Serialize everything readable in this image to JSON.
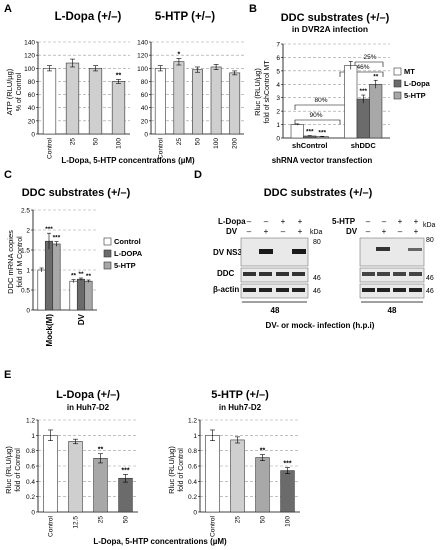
{
  "panel_letters": [
    "A",
    "B",
    "C",
    "D",
    "E"
  ],
  "panelA": {
    "left_title": "L-Dopa (+/–)",
    "right_title": "5-HTP (+/–)",
    "ylabel": "ATP (RLU/µg)",
    "ylabel2": "% of Control",
    "xlabel": "L-Dopa, 5-HTP concentrations (µM)"
  },
  "panelB": {
    "title": "DDC substrates (+/–)",
    "subtitle": "in DVR2A infection",
    "ylabel": "Rluc (RLU/µg)",
    "ylabel2": "fold of shControl MT",
    "xlabel": "shRNA vector transfection",
    "brackets": [
      "25%",
      "46%",
      "80%",
      "90%"
    ]
  },
  "panelC": {
    "title": "DDC substrates (+/–)",
    "ylabel": "DDC mRNA copies",
    "ylabel2": "fold of M Control"
  },
  "panelD": {
    "title": "DDC substrates (+/–)",
    "left_treat_label": "L-Dopa",
    "right_treat_label": "5-HTP",
    "dv_label": "DV",
    "left_treat_signs": [
      "–",
      "–",
      "+",
      "+"
    ],
    "left_dv_signs": [
      "–",
      "+",
      "–",
      "+"
    ],
    "right_treat_signs": [
      "–",
      "–",
      "+",
      "+"
    ],
    "right_dv_signs": [
      "–",
      "+",
      "–",
      "+"
    ],
    "row_labels": [
      "DV NS3",
      "DDC",
      "β-actin"
    ],
    "kda": "kDa",
    "mw_left": [
      "80",
      "46",
      "46"
    ],
    "mw_right": [
      "80",
      "46",
      "46"
    ],
    "time_left": "48",
    "time_right": "48",
    "footer": "DV- or mock- infection (h.p.i)"
  },
  "panelE": {
    "left_title": "L-Dopa (+/–)",
    "left_subtitle": "in Huh7-D2",
    "right_title": "5-HTP (+/–)",
    "right_subtitle": "in Huh7-D2",
    "ylabel": "Rluc (RLU/µg)",
    "ylabel2": "fold of Control",
    "xlabel": "L-Dopa, 5-HTP concentrations (µM)"
  },
  "colors": {
    "white": "#ffffff",
    "light": "#cfcfcf",
    "dark": "#6b6b6b",
    "grid": "#9a9a9a"
  },
  "chart_data": [
    {
      "type": "bar",
      "panel": "A-left",
      "title": "L-Dopa (+/–)",
      "ylabel": "ATP (RLU/µg) % of Control",
      "ylim": [
        0,
        140
      ],
      "yticks": [
        0,
        20,
        40,
        60,
        80,
        100,
        120,
        140
      ],
      "grid": true,
      "categories": [
        "Control",
        "25",
        "50",
        "100"
      ],
      "values": [
        100,
        108,
        100,
        80
      ],
      "errors": [
        4,
        6,
        4,
        3
      ],
      "annotations": [
        "",
        "",
        "",
        "**"
      ],
      "fills": [
        "white",
        "light",
        "light",
        "light"
      ]
    },
    {
      "type": "bar",
      "panel": "A-right",
      "title": "5-HTP (+/–)",
      "ylim": [
        0,
        140
      ],
      "yticks": [
        0,
        20,
        40,
        60,
        80,
        100,
        120,
        140
      ],
      "grid": true,
      "categories": [
        "Control",
        "25",
        "50",
        "100",
        "200"
      ],
      "values": [
        100,
        110,
        98,
        102,
        93
      ],
      "errors": [
        4,
        5,
        4,
        4,
        3
      ],
      "annotations": [
        "",
        "*",
        "",
        "",
        ""
      ],
      "fills": [
        "white",
        "light",
        "light",
        "light",
        "light"
      ]
    },
    {
      "type": "bar",
      "panel": "B",
      "title": "DDC substrates (+/–)",
      "ylabel": "Rluc (RLU/µg) fold of shControl MT",
      "ylim": [
        0,
        7
      ],
      "yticks": [
        0,
        1,
        2,
        3,
        4,
        5,
        6,
        7
      ],
      "grid": true,
      "categories": [
        "shControl",
        "shDDC"
      ],
      "legend": "right",
      "series": [
        {
          "name": "MT",
          "values": [
            1.0,
            5.4
          ],
          "errors": [
            0.05,
            0.3
          ],
          "annotations": [
            "",
            ""
          ]
        },
        {
          "name": "L-Dopa",
          "values": [
            0.15,
            2.9
          ],
          "errors": [
            0.03,
            0.3
          ],
          "annotations": [
            "***",
            "***"
          ]
        },
        {
          "name": "5-HTP",
          "values": [
            0.1,
            4.0
          ],
          "errors": [
            0.03,
            0.3
          ],
          "annotations": [
            "***",
            "**"
          ]
        }
      ]
    },
    {
      "type": "bar",
      "panel": "C",
      "title": "DDC substrates (+/–)",
      "ylabel": "DDC mRNA copies fold of M Control",
      "ylim": [
        0,
        2.5
      ],
      "yticks": [
        0,
        0.5,
        1,
        1.5,
        2,
        2.5
      ],
      "grid": true,
      "categories": [
        "Mock(M)",
        "DV"
      ],
      "legend": "right",
      "series": [
        {
          "name": "Control",
          "values": [
            1.0,
            0.72
          ],
          "errors": [
            0.05,
            0.04
          ],
          "annotations": [
            "",
            "**"
          ]
        },
        {
          "name": "L-DOPA",
          "values": [
            1.72,
            0.77
          ],
          "errors": [
            0.2,
            0.03
          ],
          "annotations": [
            "***",
            "**"
          ]
        },
        {
          "name": "5-HTP",
          "values": [
            1.65,
            0.72
          ],
          "errors": [
            0.06,
            0.03
          ],
          "annotations": [
            "***",
            "**"
          ]
        }
      ]
    },
    {
      "type": "bar",
      "panel": "E-left",
      "title": "L-Dopa (+/–)",
      "ylim": [
        0,
        1.2
      ],
      "yticks": [
        0,
        0.2,
        0.4,
        0.6,
        0.8,
        1,
        1.2
      ],
      "grid": true,
      "categories": [
        "Control",
        "12.5",
        "25",
        "50"
      ],
      "values": [
        1.0,
        0.92,
        0.7,
        0.44
      ],
      "errors": [
        0.07,
        0.03,
        0.06,
        0.05
      ],
      "annotations": [
        "",
        "",
        "**",
        "***"
      ],
      "fills": [
        "white",
        "light",
        "mid",
        "dark"
      ]
    },
    {
      "type": "bar",
      "panel": "E-right",
      "title": "5-HTP (+/–)",
      "ylim": [
        0,
        1.2
      ],
      "yticks": [
        0,
        0.2,
        0.4,
        0.6,
        0.8,
        1,
        1.2
      ],
      "grid": true,
      "categories": [
        "Control",
        "25",
        "50",
        "100"
      ],
      "values": [
        1.0,
        0.94,
        0.71,
        0.54
      ],
      "errors": [
        0.07,
        0.04,
        0.04,
        0.04
      ],
      "annotations": [
        "",
        "",
        "**",
        "***"
      ],
      "fills": [
        "white",
        "light",
        "mid",
        "dark"
      ]
    }
  ]
}
